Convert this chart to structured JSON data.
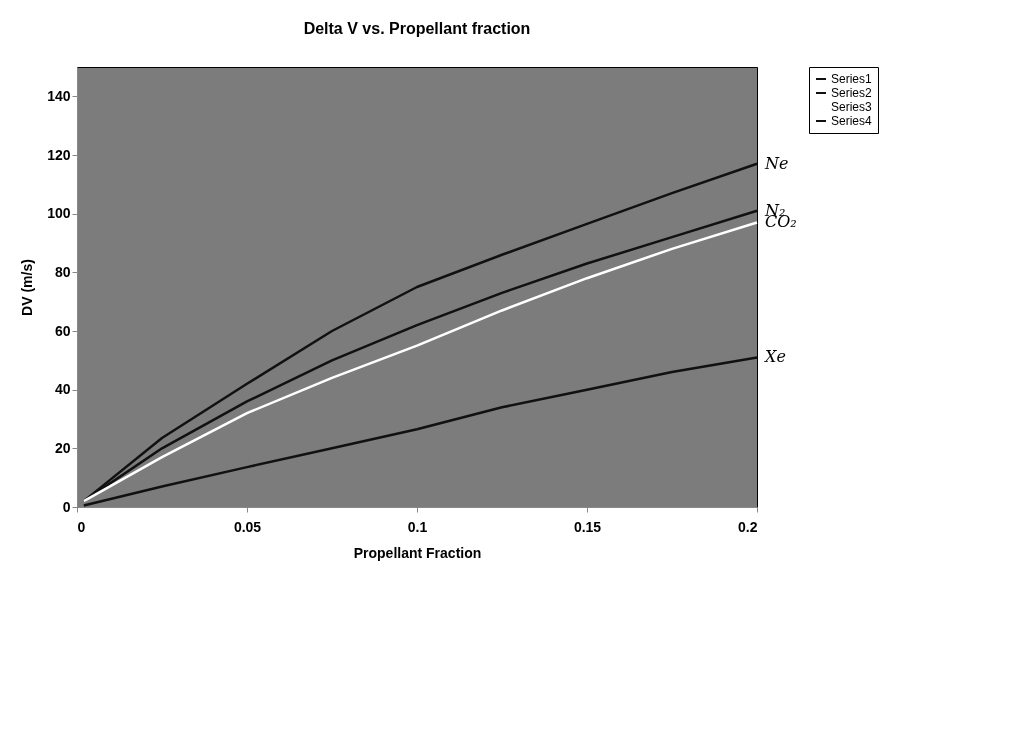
{
  "chart_data": {
    "type": "line",
    "title": "Delta V vs. Propellant fraction",
    "xlabel": "Propellant Fraction",
    "ylabel": "DV  (m/s)",
    "x": [
      0.002,
      0.025,
      0.05,
      0.075,
      0.1,
      0.125,
      0.15,
      0.175,
      0.2
    ],
    "series": [
      {
        "name": "Series1",
        "color": "#111111",
        "values": [
          2,
          23.5,
          42,
          60,
          75,
          86,
          96.5,
          107,
          117
        ]
      },
      {
        "name": "Series2",
        "color": "#111111",
        "values": [
          2,
          20,
          36,
          50,
          62,
          73,
          83,
          92,
          101
        ]
      },
      {
        "name": "Series3",
        "color": "#ffffff",
        "values": [
          2,
          17,
          32,
          44,
          55,
          67,
          78,
          88,
          97
        ]
      },
      {
        "name": "Series4",
        "color": "#111111",
        "values": [
          0.5,
          7,
          13.6,
          20,
          26.5,
          34,
          40,
          46,
          51
        ]
      }
    ],
    "xlim": [
      0,
      0.2
    ],
    "xticks": [
      0,
      0.05,
      0.1,
      0.15,
      0.2
    ],
    "ylim": [
      0,
      150
    ],
    "yticks": [
      0,
      20,
      40,
      60,
      80,
      100,
      120,
      140
    ],
    "grid": false,
    "legend": "right",
    "annotations": [
      "Ne",
      "N₂",
      "CO₂",
      "Xe"
    ]
  }
}
